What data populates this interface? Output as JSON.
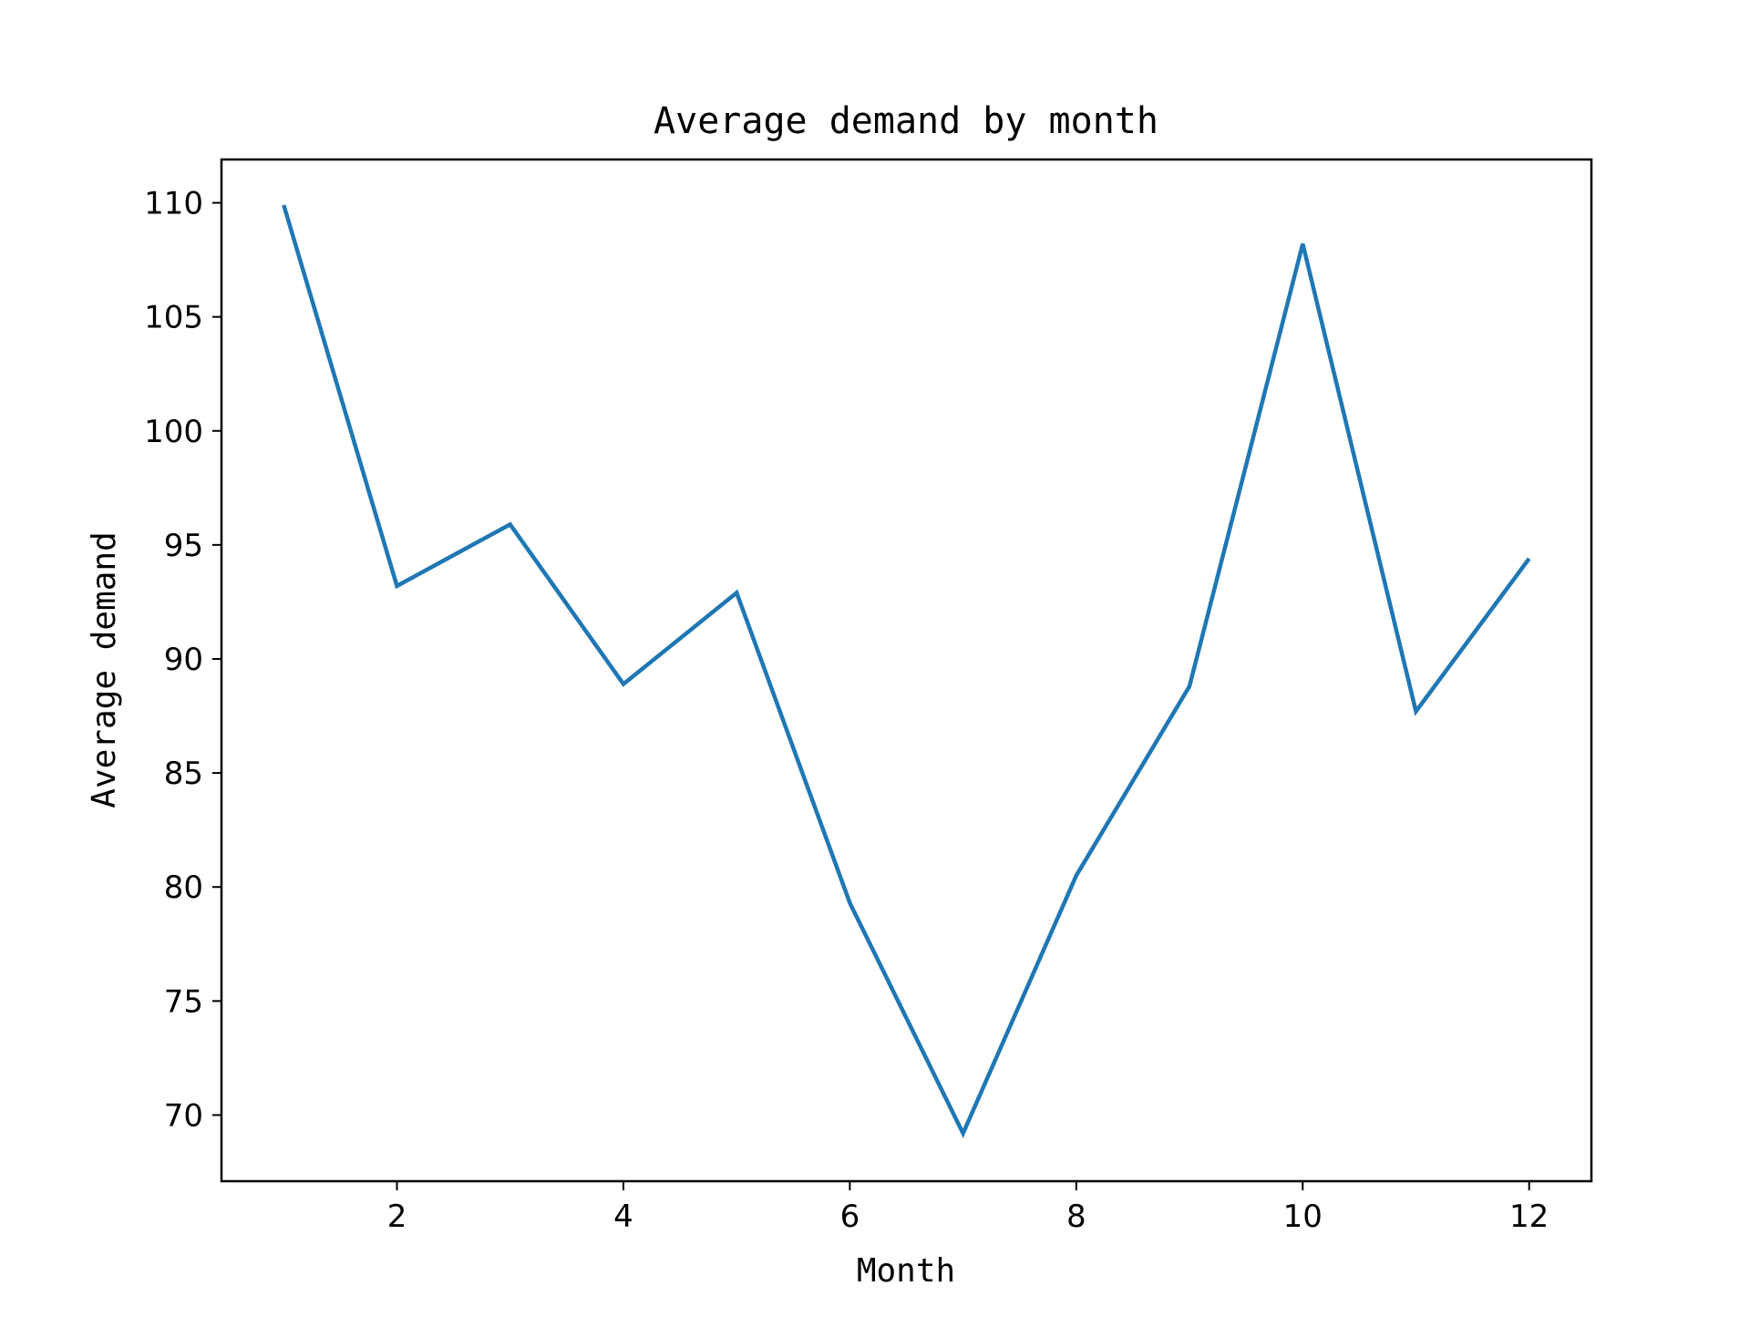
{
  "chart_data": {
    "type": "line",
    "title": "Average demand by month",
    "xlabel": "Month",
    "ylabel": "Average demand",
    "x": [
      1,
      2,
      3,
      4,
      5,
      6,
      7,
      8,
      9,
      10,
      11,
      12
    ],
    "series": [
      {
        "values": [
          109.9,
          93.2,
          95.9,
          88.9,
          92.9,
          79.3,
          69.2,
          80.5,
          88.8,
          108.2,
          87.7,
          94.4
        ],
        "color": "#1f77b4"
      }
    ],
    "xlim": [
      0.45,
      12.55
    ],
    "ylim": [
      67.1,
      111.9
    ],
    "xticks": [
      2,
      4,
      6,
      8,
      10,
      12
    ],
    "xtick_labels": [
      "2",
      "4",
      "6",
      "8",
      "10",
      "12"
    ],
    "yticks": [
      70,
      75,
      80,
      85,
      90,
      95,
      100,
      105,
      110
    ],
    "ytick_labels": [
      "70",
      "75",
      "80",
      "85",
      "90",
      "95",
      "100",
      "105",
      "110"
    ],
    "grid": false,
    "legend": false
  }
}
